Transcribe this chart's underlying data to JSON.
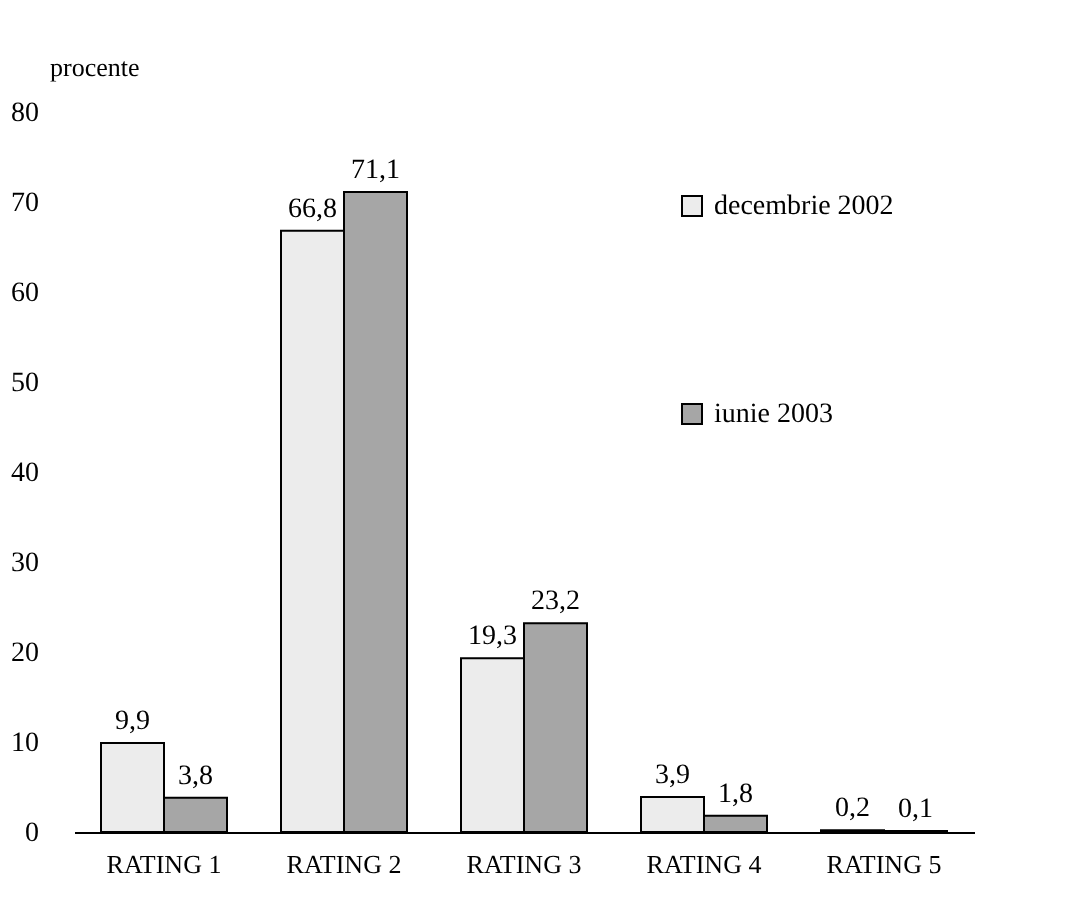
{
  "chart_data": {
    "type": "bar",
    "ylabel": "procente",
    "categories": [
      "RATING 1",
      "RATING 2",
      "RATING 3",
      "RATING 4",
      "RATING 5"
    ],
    "series": [
      {
        "name": "decembrie 2002",
        "color": "#ececec",
        "values": [
          9.9,
          66.8,
          19.3,
          3.9,
          0.2
        ],
        "value_labels": [
          "9,9",
          "66,8",
          "19,3",
          "3,9",
          "0,2"
        ]
      },
      {
        "name": "iunie 2003",
        "color": "#a6a6a6",
        "values": [
          3.8,
          71.1,
          23.2,
          1.8,
          0.1
        ],
        "value_labels": [
          "3,8",
          "71,1",
          "23,2",
          "1,8",
          "0,1"
        ]
      }
    ],
    "ylim": [
      0,
      80
    ],
    "yticks": [
      0,
      10,
      20,
      30,
      40,
      50,
      60,
      70,
      80
    ],
    "grid": false,
    "legend": "top right"
  }
}
